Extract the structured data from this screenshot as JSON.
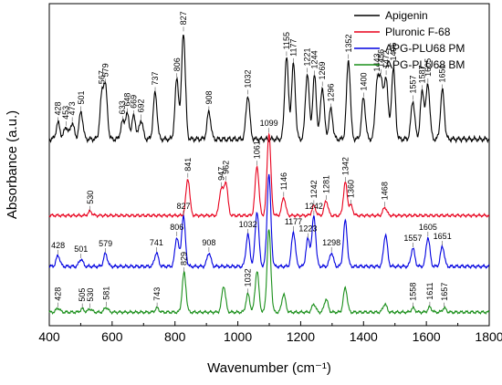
{
  "chart_data": {
    "type": "line",
    "title": "",
    "xlabel": "Wavenumber (cm⁻¹)",
    "ylabel": "Absorbance (a.u.)",
    "xlim": [
      400,
      1800
    ],
    "xticks": [
      400,
      600,
      800,
      1000,
      1200,
      1400,
      1600,
      1800
    ],
    "yticks_shown": false,
    "grid": false,
    "legend_position": "top-right",
    "series": [
      {
        "name": "Apigenin",
        "color": "#000000",
        "offset": 0.0,
        "baseline": 0.05,
        "peaks": [
          [
            428,
            0.12
          ],
          [
            453,
            0.09
          ],
          [
            473,
            0.12
          ],
          [
            501,
            0.2
          ],
          [
            567,
            0.3
          ],
          [
            579,
            0.36
          ],
          [
            633,
            0.12
          ],
          [
            648,
            0.18
          ],
          [
            669,
            0.17
          ],
          [
            692,
            0.14
          ],
          [
            737,
            0.34
          ],
          [
            806,
            0.44
          ],
          [
            827,
            0.78
          ],
          [
            908,
            0.2
          ],
          [
            1032,
            0.32
          ],
          [
            1155,
            0.6
          ],
          [
            1177,
            0.55
          ],
          [
            1221,
            0.48
          ],
          [
            1244,
            0.46
          ],
          [
            1269,
            0.38
          ],
          [
            1296,
            0.22
          ],
          [
            1352,
            0.58
          ],
          [
            1400,
            0.3
          ],
          [
            1443,
            0.4
          ],
          [
            1456,
            0.42
          ],
          [
            1472,
            0.45
          ],
          [
            1495,
            0.52
          ],
          [
            1557,
            0.28
          ],
          [
            1587,
            0.35
          ],
          [
            1605,
            0.4
          ],
          [
            1651,
            0.36
          ]
        ],
        "labels": [
          428,
          453,
          473,
          501,
          567,
          579,
          633,
          648,
          669,
          692,
          737,
          806,
          827,
          908,
          1032,
          1155,
          1177,
          1221,
          1244,
          1269,
          1296,
          1352,
          1400,
          1443,
          1456,
          1472,
          1495,
          1557,
          1587,
          1605,
          1651
        ]
      },
      {
        "name": "Pluronic F-68",
        "color": "#e8001c",
        "offset": 0.0,
        "baseline": 0.02,
        "peaks": [
          [
            530,
            0.05
          ],
          [
            841,
            0.45
          ],
          [
            947,
            0.32
          ],
          [
            962,
            0.4
          ],
          [
            1061,
            0.6
          ],
          [
            1099,
            1.0
          ],
          [
            1146,
            0.22
          ],
          [
            1242,
            0.12
          ],
          [
            1281,
            0.18
          ],
          [
            1342,
            0.4
          ],
          [
            1360,
            0.12
          ],
          [
            1468,
            0.1
          ]
        ],
        "labels": [
          530,
          841,
          947,
          962,
          1061,
          1099,
          1146,
          1242,
          1281,
          1342,
          1360,
          1468
        ]
      },
      {
        "name": "APG-PLU68 PM",
        "color": "#0000e0",
        "offset": 0.0,
        "baseline": 0.04,
        "peaks": [
          [
            428,
            0.12
          ],
          [
            501,
            0.08
          ],
          [
            579,
            0.14
          ],
          [
            741,
            0.15
          ],
          [
            806,
            0.32
          ],
          [
            827,
            0.55
          ],
          [
            908,
            0.15
          ],
          [
            1032,
            0.35
          ],
          [
            1061,
            0.6
          ],
          [
            1099,
            1.0
          ],
          [
            1177,
            0.38
          ],
          [
            1223,
            0.3
          ],
          [
            1242,
            0.55
          ],
          [
            1298,
            0.15
          ],
          [
            1342,
            0.5
          ],
          [
            1470,
            0.35
          ],
          [
            1557,
            0.2
          ],
          [
            1605,
            0.32
          ],
          [
            1651,
            0.22
          ]
        ],
        "labels": [
          428,
          501,
          579,
          741,
          806,
          827,
          908,
          1032,
          1177,
          1223,
          1242,
          1298,
          1557,
          1605,
          1651
        ]
      },
      {
        "name": "APG-PLU68 BM",
        "color": "#1a8f1a",
        "offset": 0.0,
        "baseline": 0.02,
        "peaks": [
          [
            428,
            0.05
          ],
          [
            505,
            0.04
          ],
          [
            530,
            0.04
          ],
          [
            581,
            0.06
          ],
          [
            743,
            0.05
          ],
          [
            829,
            0.48
          ],
          [
            955,
            0.32
          ],
          [
            1032,
            0.22
          ],
          [
            1061,
            0.5
          ],
          [
            1099,
            1.0
          ],
          [
            1146,
            0.22
          ],
          [
            1242,
            0.1
          ],
          [
            1281,
            0.16
          ],
          [
            1342,
            0.3
          ],
          [
            1468,
            0.1
          ],
          [
            1558,
            0.05
          ],
          [
            1611,
            0.06
          ],
          [
            1657,
            0.05
          ]
        ],
        "labels": [
          428,
          505,
          530,
          581,
          743,
          829,
          1032,
          1558,
          1611,
          1657
        ]
      }
    ]
  }
}
